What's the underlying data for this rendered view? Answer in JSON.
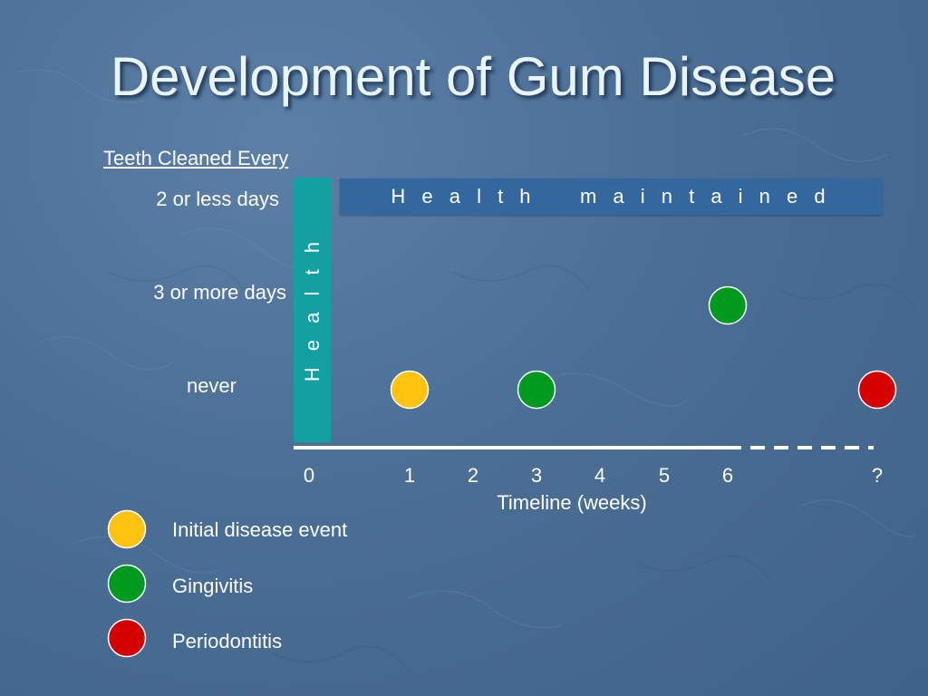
{
  "title": "Development of Gum Disease",
  "subtitle": "Teeth Cleaned Every",
  "rows": [
    {
      "label": "2 or less days"
    },
    {
      "label": "3 or more days"
    },
    {
      "label": "never"
    }
  ],
  "health_vertical": "H e a l t h",
  "health_maintained": "H e a l t h    m a i n t a i n e d",
  "timeline": {
    "ticks": [
      "0",
      "1",
      "2",
      "3",
      "4",
      "5",
      "6",
      "?"
    ],
    "label": "Timeline (weeks)"
  },
  "events": [
    {
      "row": 2,
      "week": 1,
      "type": "initial"
    },
    {
      "row": 2,
      "week": 3,
      "type": "gingivitis"
    },
    {
      "row": 1,
      "week": 6,
      "type": "gingivitis"
    },
    {
      "row": 2,
      "week": "?",
      "type": "periodontitis"
    }
  ],
  "legend": [
    {
      "type": "initial",
      "label": "Initial disease event",
      "color": "#ffc20e"
    },
    {
      "type": "gingivitis",
      "label": "Gingivitis",
      "color": "#009a1e"
    },
    {
      "type": "periodontitis",
      "label": "Periodontitis",
      "color": "#d40000"
    }
  ]
}
